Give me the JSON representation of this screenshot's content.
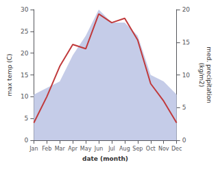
{
  "chart_data": {
    "type": "line",
    "xlabel": "date (month)",
    "ylabel": "max temp (C)",
    "y2label": "med. precipitation\n(kg/m2)",
    "categories": [
      "Jan",
      "Feb",
      "Mar",
      "Apr",
      "May",
      "Jun",
      "Jul",
      "Aug",
      "Sep",
      "Oct",
      "Nov",
      "Dec"
    ],
    "series": [
      {
        "type": "area",
        "axis": "y2",
        "color": "#c5cce8",
        "values": [
          7,
          8,
          9,
          13,
          16,
          20,
          18,
          18,
          16,
          10,
          9,
          7
        ]
      },
      {
        "type": "line",
        "axis": "y",
        "color": "#c0393b",
        "values": [
          4,
          10,
          17,
          22,
          21,
          29,
          27,
          28,
          23,
          13,
          9,
          4
        ]
      }
    ],
    "ylim": [
      0,
      30
    ],
    "yticks": [
      0,
      5,
      10,
      15,
      20,
      25,
      30
    ],
    "y2lim": [
      0,
      20
    ],
    "y2ticks": [
      0,
      5,
      10,
      15,
      20
    ],
    "grid": false
  }
}
